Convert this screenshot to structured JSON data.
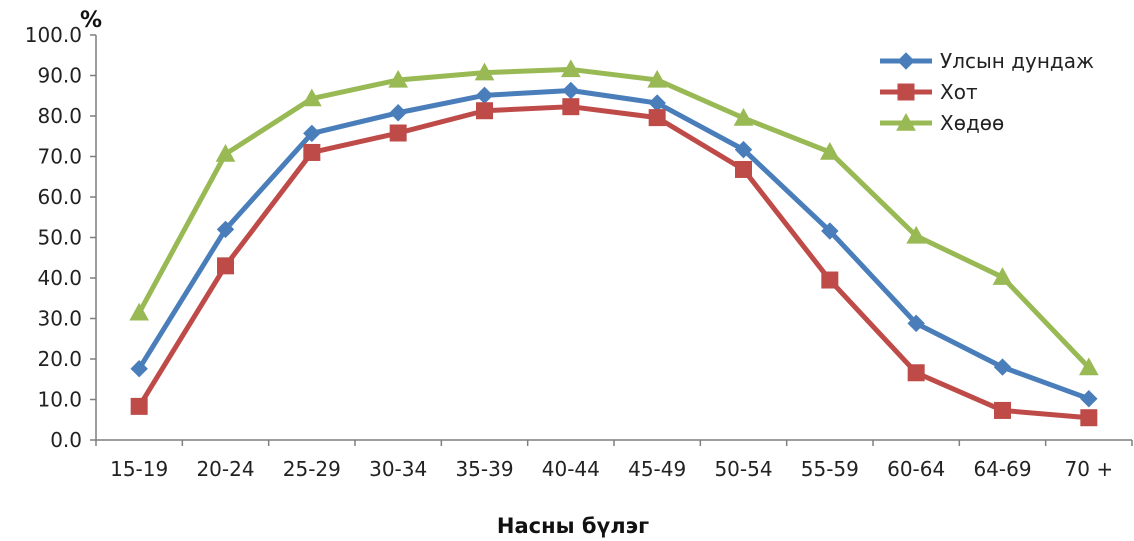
{
  "chart_data": {
    "type": "line",
    "title": "",
    "xlabel": "Насны бүлэг",
    "ylabel": "%",
    "ylim": [
      0,
      100
    ],
    "ytick_step": 10,
    "ytick_labels": [
      "0.0",
      "10.0",
      "20.0",
      "30.0",
      "40.0",
      "50.0",
      "60.0",
      "70.0",
      "80.0",
      "90.0",
      "100.0"
    ],
    "grid": false,
    "legend_position": "top-right",
    "categories": [
      "15-19",
      "20-24",
      "25-29",
      "30-34",
      "35-39",
      "40-44",
      "45-49",
      "50-54",
      "55-59",
      "60-64",
      "64-69",
      "70 +"
    ],
    "series": [
      {
        "name": "Улсын дундаж",
        "color": "#4a7ebb",
        "marker": "diamond",
        "values": [
          17.6,
          52.0,
          75.7,
          80.8,
          85.1,
          86.3,
          83.2,
          71.7,
          51.6,
          28.8,
          18.0,
          10.2
        ]
      },
      {
        "name": "Хот",
        "color": "#be4b48",
        "marker": "square",
        "values": [
          8.3,
          43.0,
          71.0,
          75.8,
          81.3,
          82.3,
          79.6,
          66.8,
          39.5,
          16.6,
          7.3,
          5.5
        ]
      },
      {
        "name": "Хөдөө",
        "color": "#98b954",
        "marker": "triangle",
        "values": [
          31.4,
          70.6,
          84.3,
          88.9,
          90.7,
          91.5,
          88.9,
          79.5,
          71.1,
          50.4,
          40.2,
          17.9
        ]
      }
    ]
  }
}
